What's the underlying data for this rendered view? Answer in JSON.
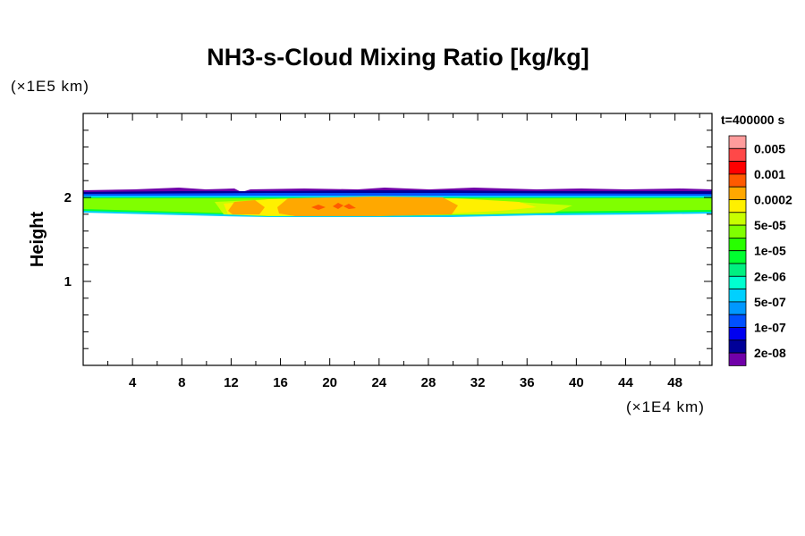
{
  "chart_data": {
    "type": "heatmap",
    "title": "NH3-s-Cloud Mixing Ratio [kg/kg]",
    "xlabel": "",
    "x_unit": "(×1E4 km)",
    "ylabel": "Height",
    "y_unit": "(×1E5 km)",
    "xlim": [
      0,
      51
    ],
    "ylim": [
      0,
      3
    ],
    "xticks": [
      4,
      8,
      12,
      16,
      20,
      24,
      28,
      32,
      36,
      40,
      44,
      48
    ],
    "yticks": [
      1,
      2
    ],
    "time_label": "t=400000 s",
    "colorbar": {
      "labels": [
        "0.005",
        "0.001",
        "0.0002",
        "5e-05",
        "1e-05",
        "2e-06",
        "5e-07",
        "1e-07",
        "2e-08"
      ],
      "colors": [
        "#ff9c9c",
        "#ff4848",
        "#ff0000",
        "#ff5a00",
        "#ffa800",
        "#fff000",
        "#c8ff00",
        "#80ff00",
        "#28ff00",
        "#00ff30",
        "#00f080",
        "#00ffd0",
        "#00d0ff",
        "#0098ff",
        "#0050ff",
        "#0000f0",
        "#000098",
        "#7000a8"
      ]
    },
    "field_description_values": {
      "cloud_layer_height_range": [
        1.8,
        2.1
      ],
      "max_region_x_range": [
        16,
        30
      ],
      "max_region_level": "0.0002"
    }
  }
}
